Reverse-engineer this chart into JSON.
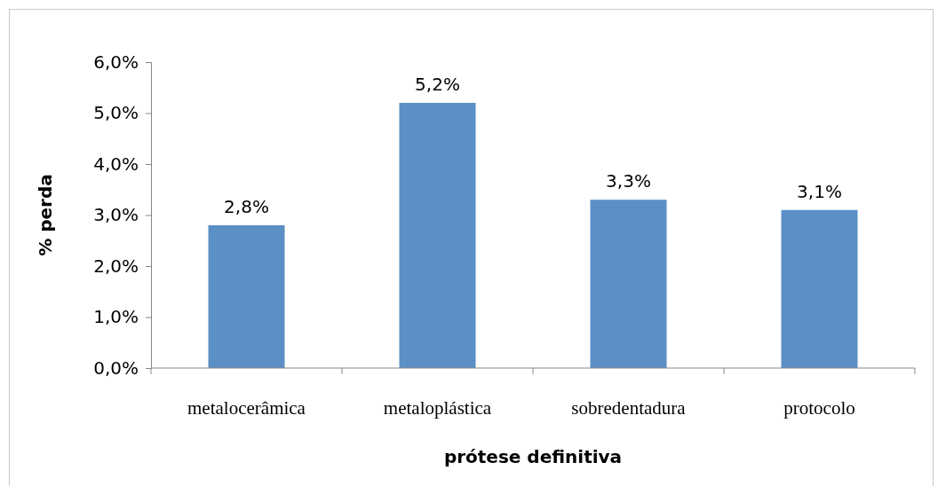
{
  "chart_data": {
    "type": "bar",
    "xlabel": "prótese definitiva",
    "ylabel": "% perda",
    "categories": [
      "metalocerâmica",
      "metaloplástica",
      "sobredentadura",
      "protocolo"
    ],
    "values": [
      2.8,
      5.2,
      3.3,
      3.1
    ],
    "value_labels": [
      "2,8%",
      "5,2%",
      "3,3%",
      "3,1%"
    ],
    "color": "#5b8fc6",
    "ylim": [
      0,
      6
    ],
    "yticks": [
      {
        "value": 0,
        "label": "0,0%"
      },
      {
        "value": 1,
        "label": "1,0%"
      },
      {
        "value": 2,
        "label": "2,0%"
      },
      {
        "value": 3,
        "label": "3,0%"
      },
      {
        "value": 4,
        "label": "4,0%"
      },
      {
        "value": 5,
        "label": "5,0%"
      },
      {
        "value": 6,
        "label": "6,0%"
      }
    ],
    "grid": false
  }
}
